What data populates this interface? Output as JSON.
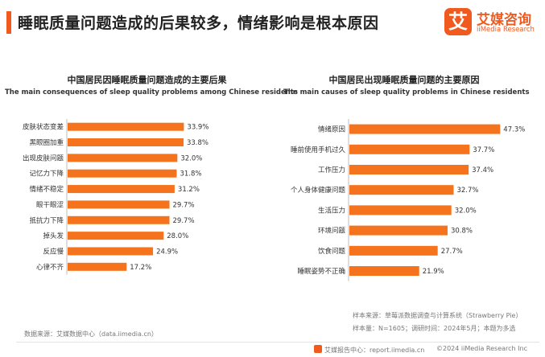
{
  "header": {
    "title": "睡眠质量问题造成的后果较多，情绪影响是根本原因",
    "accent_color": "#f05a1e"
  },
  "logo": {
    "glyph": "艾",
    "name_cn": "艾媒咨询",
    "name_en": "iiMedia Research",
    "color": "#f05a1e"
  },
  "chart_data": [
    {
      "type": "bar",
      "orientation": "horizontal",
      "title": "中国居民因睡眠质量问题造成的主要后果",
      "subtitle": "The main consequences of sleep quality problems among Chinese residents",
      "categories": [
        "皮肤状态变差",
        "黑眼圈加重",
        "出现皮肤问题",
        "记忆力下降",
        "情绪不稳定",
        "眼干眼涩",
        "抵抗力下降",
        "掉头发",
        "反应慢",
        "心律不齐"
      ],
      "values": [
        33.9,
        33.8,
        32.0,
        31.8,
        31.2,
        29.7,
        29.7,
        28.0,
        24.9,
        17.2
      ],
      "value_labels": [
        "33.9%",
        "33.8%",
        "32.0%",
        "31.8%",
        "31.2%",
        "29.7%",
        "29.7%",
        "28.0%",
        "24.9%",
        "17.2%"
      ],
      "unit": "%",
      "xlim": [
        0,
        50
      ],
      "color": "#f5731c"
    },
    {
      "type": "bar",
      "orientation": "horizontal",
      "title": "中国居民出现睡眠质量问题的主要原因",
      "subtitle": "The main causes of sleep quality problems in Chinese residents",
      "categories": [
        "情绪原因",
        "睡前使用手机过久",
        "工作压力",
        "个人身体健康问题",
        "生活压力",
        "环境问题",
        "饮食问题",
        "睡眠姿势不正确"
      ],
      "values": [
        47.3,
        37.7,
        37.4,
        32.7,
        32.0,
        30.8,
        27.7,
        21.9
      ],
      "value_labels": [
        "47.3%",
        "37.7%",
        "37.4%",
        "32.7%",
        "32.0%",
        "30.8%",
        "27.7%",
        "21.9%"
      ],
      "unit": "%",
      "xlim": [
        0,
        50
      ],
      "color": "#f5731c"
    }
  ],
  "notes": {
    "left_source": "数据来源：艾媒数据中心（data.iimedia.cn）",
    "right_source": "样本来源：草莓派数据调查与计算系统（Strawberry Pie）",
    "right_sample": "样本量：N=1605；调研时间：2024年5月；本题为多选"
  },
  "footer": {
    "brand": "艾媒报告中心：report.iimedia.cn",
    "copyright": "©2024  iiMedia Research Inc"
  },
  "colors": {
    "bar": "#f5731c",
    "axis": "#bdbdbd",
    "text": "#333333"
  }
}
